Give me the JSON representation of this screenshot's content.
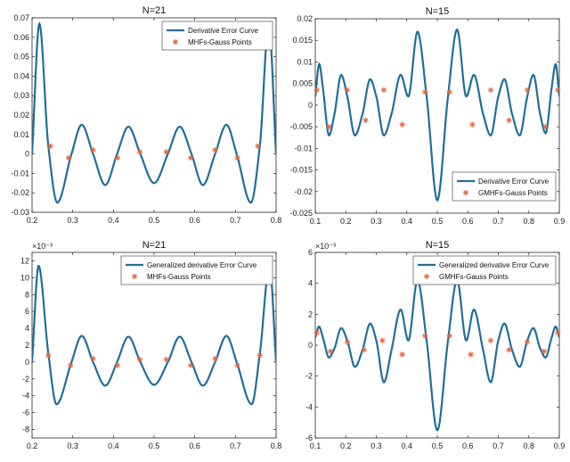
{
  "colors": {
    "curve": "#1f6f9a",
    "points": "#e8663d",
    "axis": "#262626",
    "background": "#ffffff"
  },
  "chart_data": [
    {
      "type": "line",
      "title": "N=21",
      "xlim": [
        0.2,
        0.8
      ],
      "ylim": [
        -0.03,
        0.07
      ],
      "xticks": [
        0.2,
        0.3,
        0.4,
        0.5,
        0.6,
        0.7,
        0.8
      ],
      "xtick_labels": [
        "0.2",
        "0.3",
        "0.4",
        "0.5",
        "0.6",
        "0.7",
        "0.8"
      ],
      "yticks": [
        -0.03,
        -0.02,
        -0.01,
        0,
        0.01,
        0.02,
        0.03,
        0.04,
        0.05,
        0.06,
        0.07
      ],
      "ytick_labels": [
        "-0.03",
        "-0.02",
        "-0.01",
        "0",
        "0.01",
        "0.02",
        "0.03",
        "0.04",
        "0.05",
        "0.06",
        "0.07"
      ],
      "exponent_label": "",
      "grid": false,
      "legend_position": "top-right",
      "series": [
        {
          "name": "Derivative Error Curve",
          "kind": "line",
          "x": [
            0.2,
            0.218,
            0.24,
            0.262,
            0.297,
            0.322,
            0.35,
            0.38,
            0.409,
            0.437,
            0.466,
            0.5,
            0.534,
            0.563,
            0.592,
            0.62,
            0.65,
            0.678,
            0.703,
            0.738,
            0.76,
            0.782,
            0.8
          ],
          "y": [
            0,
            0.067,
            0.004,
            -0.025,
            0,
            0.015,
            0,
            -0.016,
            0,
            0.014,
            0,
            -0.015,
            0,
            0.014,
            0,
            -0.016,
            0,
            0.015,
            0,
            -0.025,
            0.004,
            0.067,
            0
          ]
        },
        {
          "name": "MHFs-Gauss Points",
          "kind": "scatter",
          "x": [
            0.245,
            0.29,
            0.35,
            0.41,
            0.465,
            0.53,
            0.59,
            0.65,
            0.705,
            0.755
          ],
          "y": [
            0.004,
            -0.002,
            0.002,
            -0.002,
            0.001,
            0.001,
            -0.002,
            0.002,
            -0.002,
            0.004
          ]
        }
      ]
    },
    {
      "type": "line",
      "title": "N=15",
      "xlim": [
        0.1,
        0.9
      ],
      "ylim": [
        -0.025,
        0.02
      ],
      "xticks": [
        0.1,
        0.2,
        0.3,
        0.4,
        0.5,
        0.6,
        0.7,
        0.8,
        0.9
      ],
      "xtick_labels": [
        "0.1",
        "0.2",
        "0.3",
        "0.4",
        "0.5",
        "0.6",
        "0.7",
        "0.8",
        "0.9"
      ],
      "yticks": [
        -0.025,
        -0.02,
        -0.015,
        -0.01,
        -0.005,
        0,
        0.005,
        0.01,
        0.015,
        0.02
      ],
      "ytick_labels": [
        "-0.025",
        "-0.02",
        "-0.015",
        "-0.01",
        "-0.005",
        "0",
        "0.005",
        "0.01",
        "0.015",
        "0.02"
      ],
      "exponent_label": "",
      "grid": false,
      "legend_position": "bottom-right",
      "series": [
        {
          "name": "Derivative Error Curve",
          "kind": "line",
          "x": [
            0.1,
            0.113,
            0.125,
            0.145,
            0.163,
            0.185,
            0.205,
            0.23,
            0.255,
            0.28,
            0.3,
            0.325,
            0.35,
            0.38,
            0.405,
            0.435,
            0.465,
            0.5,
            0.535,
            0.565,
            0.595,
            0.62,
            0.65,
            0.675,
            0.7,
            0.72,
            0.745,
            0.77,
            0.795,
            0.815,
            0.837,
            0.855,
            0.875,
            0.888,
            0.9
          ],
          "y": [
            0.002,
            0.0095,
            0.004,
            -0.007,
            -0.002,
            0.007,
            0.002,
            -0.007,
            -0.002,
            0.006,
            0.002,
            -0.007,
            -0.002,
            0.007,
            0.002,
            0.017,
            0.002,
            -0.022,
            0.002,
            0.0175,
            0.002,
            0.007,
            -0.002,
            -0.007,
            0.002,
            0.006,
            -0.002,
            -0.007,
            0.002,
            0.007,
            -0.002,
            -0.0065,
            0.004,
            0.0095,
            0.002
          ]
        },
        {
          "name": "GMHFs-Gauss Points",
          "kind": "scatter",
          "x": [
            0.105,
            0.145,
            0.205,
            0.265,
            0.325,
            0.385,
            0.46,
            0.54,
            0.615,
            0.675,
            0.735,
            0.795,
            0.855,
            0.895
          ],
          "y": [
            0.0035,
            -0.005,
            0.0035,
            -0.0035,
            0.0035,
            -0.0045,
            0.003,
            0.003,
            -0.0045,
            0.0035,
            -0.0035,
            0.0035,
            -0.005,
            0.0035
          ]
        }
      ]
    },
    {
      "type": "line",
      "title": "N=21",
      "xlim": [
        0.2,
        0.8
      ],
      "ylim": [
        -9,
        13
      ],
      "xticks": [
        0.2,
        0.3,
        0.4,
        0.5,
        0.6,
        0.7,
        0.8
      ],
      "xtick_labels": [
        "0.2",
        "0.3",
        "0.4",
        "0.5",
        "0.6",
        "0.7",
        "0.8"
      ],
      "yticks": [
        -8,
        -6,
        -4,
        -2,
        0,
        2,
        4,
        6,
        8,
        10,
        12
      ],
      "ytick_labels": [
        "-8",
        "-6",
        "-4",
        "-2",
        "0",
        "2",
        "4",
        "6",
        "8",
        "10",
        "12"
      ],
      "exponent_label": "×10⁻³",
      "grid": false,
      "legend_position": "top-right",
      "series": [
        {
          "name": "Generalized derivative Error Curve",
          "kind": "line",
          "x": [
            0.2,
            0.216,
            0.24,
            0.26,
            0.297,
            0.322,
            0.35,
            0.38,
            0.409,
            0.437,
            0.466,
            0.5,
            0.534,
            0.563,
            0.592,
            0.62,
            0.65,
            0.678,
            0.703,
            0.74,
            0.76,
            0.784,
            0.8
          ],
          "y": [
            0,
            11.4,
            1,
            -5,
            0,
            3.1,
            0,
            -2.8,
            0,
            3,
            0,
            -2.7,
            0,
            3,
            0,
            -2.8,
            0,
            3.1,
            0,
            -5,
            1,
            11.4,
            0
          ]
        },
        {
          "name": "MHFs-Gauss Points",
          "kind": "scatter",
          "x": [
            0.24,
            0.295,
            0.35,
            0.41,
            0.465,
            0.53,
            0.59,
            0.65,
            0.705,
            0.76
          ],
          "y": [
            0.8,
            -0.4,
            0.4,
            -0.4,
            0.3,
            0.3,
            -0.4,
            0.4,
            -0.4,
            0.8
          ]
        }
      ]
    },
    {
      "type": "line",
      "title": "N=15",
      "xlim": [
        0.1,
        0.9
      ],
      "ylim": [
        -6,
        6
      ],
      "xticks": [
        0.1,
        0.2,
        0.3,
        0.4,
        0.5,
        0.6,
        0.7,
        0.8,
        0.9
      ],
      "xtick_labels": [
        "0.1",
        "0.2",
        "0.3",
        "0.4",
        "0.5",
        "0.6",
        "0.7",
        "0.8",
        "0.9"
      ],
      "yticks": [
        -6,
        -4,
        -2,
        0,
        2,
        4,
        6
      ],
      "ytick_labels": [
        "-6",
        "-4",
        "-2",
        "0",
        "2",
        "4",
        "6"
      ],
      "exponent_label": "×10⁻³",
      "grid": false,
      "legend_position": "top-right",
      "series": [
        {
          "name": "Generalized derivative Error Curve",
          "kind": "line",
          "x": [
            0.1,
            0.112,
            0.125,
            0.145,
            0.163,
            0.185,
            0.205,
            0.23,
            0.255,
            0.28,
            0.3,
            0.325,
            0.35,
            0.38,
            0.405,
            0.435,
            0.465,
            0.5,
            0.535,
            0.565,
            0.595,
            0.62,
            0.65,
            0.675,
            0.7,
            0.72,
            0.745,
            0.77,
            0.795,
            0.815,
            0.837,
            0.855,
            0.875,
            0.888,
            0.9
          ],
          "y": [
            0.5,
            1.2,
            0.5,
            -0.8,
            -0.2,
            1.1,
            0.3,
            -1.4,
            -0.3,
            1.4,
            0.3,
            -2.4,
            -0.3,
            2.3,
            0.3,
            4.2,
            0.3,
            -5.5,
            0.3,
            4.2,
            0.3,
            2.3,
            -0.3,
            -2.4,
            0.3,
            1.4,
            -0.3,
            -1.4,
            0.3,
            1.1,
            -0.2,
            -0.8,
            0.5,
            1.2,
            0.5
          ]
        },
        {
          "name": "GMHFs-Gauss Points",
          "kind": "scatter",
          "x": [
            0.105,
            0.15,
            0.205,
            0.26,
            0.32,
            0.385,
            0.46,
            0.54,
            0.61,
            0.675,
            0.735,
            0.795,
            0.85,
            0.895
          ],
          "y": [
            0.8,
            -0.4,
            0.2,
            -0.3,
            0.3,
            -0.6,
            0.6,
            0.6,
            -0.6,
            0.3,
            -0.3,
            0.2,
            -0.4,
            0.8
          ]
        }
      ]
    }
  ]
}
